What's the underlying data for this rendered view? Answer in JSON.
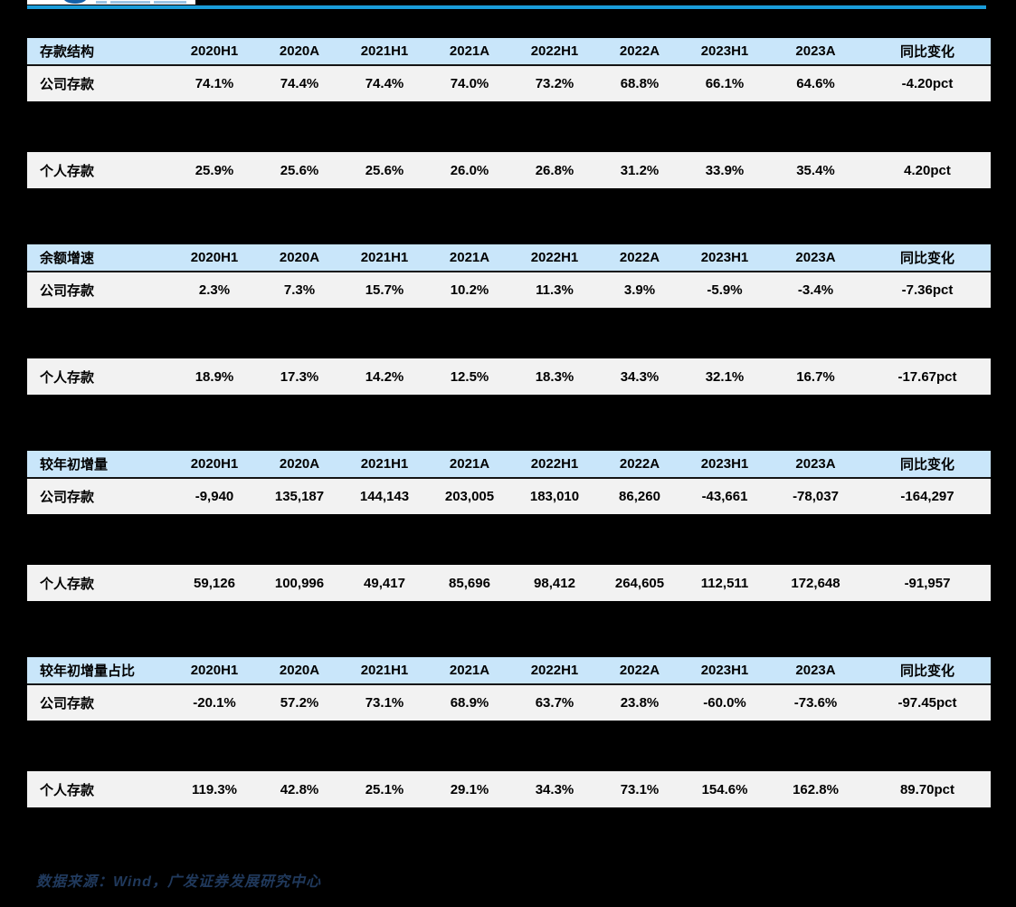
{
  "page": {
    "background_color": "#000000",
    "accent_line_color": "#1a9cd9",
    "table_header_bg": "#c9e6fa",
    "table_row_bg": "#f2f2f2",
    "footer_text_color": "#20395c"
  },
  "columns": [
    "2020H1",
    "2020A",
    "2021H1",
    "2021A",
    "2022H1",
    "2022A",
    "2023H1",
    "2023A",
    "同比变化"
  ],
  "tables": [
    {
      "title": "存款结构",
      "rows": [
        {
          "label": "公司存款",
          "values": [
            "74.1%",
            "74.4%",
            "74.4%",
            "74.0%",
            "73.2%",
            "68.8%",
            "66.1%",
            "64.6%",
            "-4.20pct"
          ]
        },
        {
          "label": "个人存款",
          "values": [
            "25.9%",
            "25.6%",
            "25.6%",
            "26.0%",
            "26.8%",
            "31.2%",
            "33.9%",
            "35.4%",
            "4.20pct"
          ]
        }
      ]
    },
    {
      "title": "余额增速",
      "rows": [
        {
          "label": "公司存款",
          "values": [
            "2.3%",
            "7.3%",
            "15.7%",
            "10.2%",
            "11.3%",
            "3.9%",
            "-5.9%",
            "-3.4%",
            "-7.36pct"
          ]
        },
        {
          "label": "个人存款",
          "values": [
            "18.9%",
            "17.3%",
            "14.2%",
            "12.5%",
            "18.3%",
            "34.3%",
            "32.1%",
            "16.7%",
            "-17.67pct"
          ]
        }
      ]
    },
    {
      "title": "较年初增量",
      "rows": [
        {
          "label": "公司存款",
          "values": [
            "-9,940",
            "135,187",
            "144,143",
            "203,005",
            "183,010",
            "86,260",
            "-43,661",
            "-78,037",
            "-164,297"
          ]
        },
        {
          "label": "个人存款",
          "values": [
            "59,126",
            "100,996",
            "49,417",
            "85,696",
            "98,412",
            "264,605",
            "112,511",
            "172,648",
            "-91,957"
          ]
        }
      ]
    },
    {
      "title": "较年初增量占比",
      "rows": [
        {
          "label": "公司存款",
          "values": [
            "-20.1%",
            "57.2%",
            "73.1%",
            "68.9%",
            "63.7%",
            "23.8%",
            "-60.0%",
            "-73.6%",
            "-97.45pct"
          ]
        },
        {
          "label": "个人存款",
          "values": [
            "119.3%",
            "42.8%",
            "25.1%",
            "29.1%",
            "34.3%",
            "73.1%",
            "154.6%",
            "162.8%",
            "89.70pct"
          ]
        }
      ]
    }
  ],
  "footer": {
    "source_text": "数据来源：Wind，广发证券发展研究中心"
  }
}
